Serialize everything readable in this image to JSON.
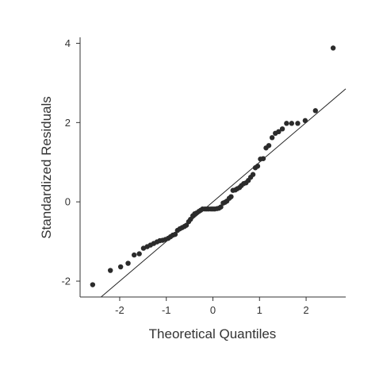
{
  "chart_data": {
    "type": "scatter",
    "title": "",
    "xlabel": "Theoretical Quantiles",
    "ylabel": "Standardized Residuals",
    "xlim": [
      -2.85,
      2.85
    ],
    "ylim": [
      -2.4,
      4.15
    ],
    "xticks": [
      -2,
      -1,
      0,
      1,
      2
    ],
    "yticks": [
      -2,
      0,
      2,
      4
    ],
    "xtick_labels": [
      "-2",
      "-1",
      "0",
      "1",
      "2"
    ],
    "ytick_labels": [
      "-2",
      "0",
      "2",
      "4"
    ],
    "grid": false,
    "reference_line": {
      "slope": 1.0,
      "intercept": 0.0
    },
    "point_color": "#2b2b2b",
    "line_color": "#222222",
    "points": [
      {
        "x": -2.58,
        "y": -2.09
      },
      {
        "x": -2.2,
        "y": -1.73
      },
      {
        "x": -1.98,
        "y": -1.64
      },
      {
        "x": -1.82,
        "y": -1.55
      },
      {
        "x": -1.69,
        "y": -1.34
      },
      {
        "x": -1.58,
        "y": -1.31
      },
      {
        "x": -1.49,
        "y": -1.17
      },
      {
        "x": -1.41,
        "y": -1.13
      },
      {
        "x": -1.34,
        "y": -1.09
      },
      {
        "x": -1.27,
        "y": -1.05
      },
      {
        "x": -1.2,
        "y": -1.01
      },
      {
        "x": -1.14,
        "y": -0.98
      },
      {
        "x": -1.08,
        "y": -0.97
      },
      {
        "x": -1.02,
        "y": -0.95
      },
      {
        "x": -0.96,
        "y": -0.92
      },
      {
        "x": -0.91,
        "y": -0.88
      },
      {
        "x": -0.86,
        "y": -0.84
      },
      {
        "x": -0.81,
        "y": -0.82
      },
      {
        "x": -0.76,
        "y": -0.72
      },
      {
        "x": -0.71,
        "y": -0.68
      },
      {
        "x": -0.66,
        "y": -0.65
      },
      {
        "x": -0.61,
        "y": -0.62
      },
      {
        "x": -0.57,
        "y": -0.59
      },
      {
        "x": -0.52,
        "y": -0.5
      },
      {
        "x": -0.48,
        "y": -0.44
      },
      {
        "x": -0.43,
        "y": -0.35
      },
      {
        "x": -0.39,
        "y": -0.3
      },
      {
        "x": -0.35,
        "y": -0.28
      },
      {
        "x": -0.3,
        "y": -0.24
      },
      {
        "x": -0.26,
        "y": -0.21
      },
      {
        "x": -0.22,
        "y": -0.18
      },
      {
        "x": -0.17,
        "y": -0.18
      },
      {
        "x": -0.13,
        "y": -0.18
      },
      {
        "x": -0.09,
        "y": -0.18
      },
      {
        "x": -0.04,
        "y": -0.18
      },
      {
        "x": 0.0,
        "y": -0.18
      },
      {
        "x": 0.04,
        "y": -0.18
      },
      {
        "x": 0.09,
        "y": -0.17
      },
      {
        "x": 0.13,
        "y": -0.16
      },
      {
        "x": 0.17,
        "y": -0.13
      },
      {
        "x": 0.22,
        "y": -0.03
      },
      {
        "x": 0.26,
        "y": -0.01
      },
      {
        "x": 0.3,
        "y": 0.02
      },
      {
        "x": 0.35,
        "y": 0.09
      },
      {
        "x": 0.39,
        "y": 0.13
      },
      {
        "x": 0.43,
        "y": 0.29
      },
      {
        "x": 0.48,
        "y": 0.3
      },
      {
        "x": 0.52,
        "y": 0.33
      },
      {
        "x": 0.57,
        "y": 0.36
      },
      {
        "x": 0.61,
        "y": 0.41
      },
      {
        "x": 0.66,
        "y": 0.46
      },
      {
        "x": 0.71,
        "y": 0.48
      },
      {
        "x": 0.76,
        "y": 0.54
      },
      {
        "x": 0.81,
        "y": 0.62
      },
      {
        "x": 0.86,
        "y": 0.69
      },
      {
        "x": 0.91,
        "y": 0.86
      },
      {
        "x": 0.96,
        "y": 0.9
      },
      {
        "x": 1.02,
        "y": 1.08
      },
      {
        "x": 1.08,
        "y": 1.09
      },
      {
        "x": 1.14,
        "y": 1.36
      },
      {
        "x": 1.2,
        "y": 1.42
      },
      {
        "x": 1.27,
        "y": 1.62
      },
      {
        "x": 1.34,
        "y": 1.73
      },
      {
        "x": 1.41,
        "y": 1.77
      },
      {
        "x": 1.49,
        "y": 1.84
      },
      {
        "x": 1.58,
        "y": 1.98
      },
      {
        "x": 1.69,
        "y": 1.98
      },
      {
        "x": 1.82,
        "y": 1.98
      },
      {
        "x": 1.98,
        "y": 2.05
      },
      {
        "x": 2.2,
        "y": 2.3
      },
      {
        "x": 2.58,
        "y": 3.88
      }
    ]
  }
}
